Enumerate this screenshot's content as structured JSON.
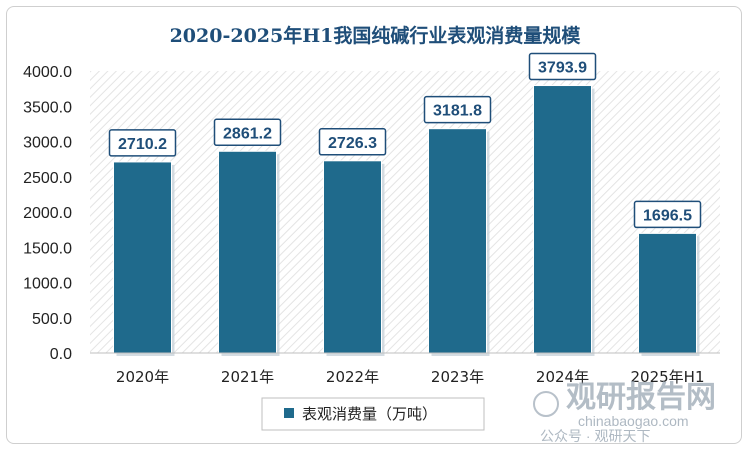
{
  "chart_data": {
    "type": "bar",
    "title": "2020-2025年H1我国纯碱行业表观消费量规模",
    "categories": [
      "2020年",
      "2021年",
      "2022年",
      "2023年",
      "2024年",
      "2025年H1"
    ],
    "series": [
      {
        "name": "表观消费量（万吨）",
        "values": [
          2710.2,
          2861.2,
          2726.3,
          3181.8,
          3793.9,
          1696.5
        ]
      }
    ],
    "data_labels": [
      "2710.2",
      "2861.2",
      "2726.3",
      "3181.8",
      "3793.9",
      "1696.5"
    ],
    "y_ticks": [
      "0.0",
      "500.0",
      "1000.0",
      "1500.0",
      "2000.0",
      "2500.0",
      "3000.0",
      "3500.0",
      "4000.0"
    ],
    "ylim": [
      0,
      4000
    ],
    "grid": false,
    "legend_position": "bottom",
    "bar_color": "#1f6a8c"
  },
  "watermark": {
    "brand": "观研报告网",
    "site": "chinabaogao.com",
    "account": "公众号 · 观研天下"
  }
}
